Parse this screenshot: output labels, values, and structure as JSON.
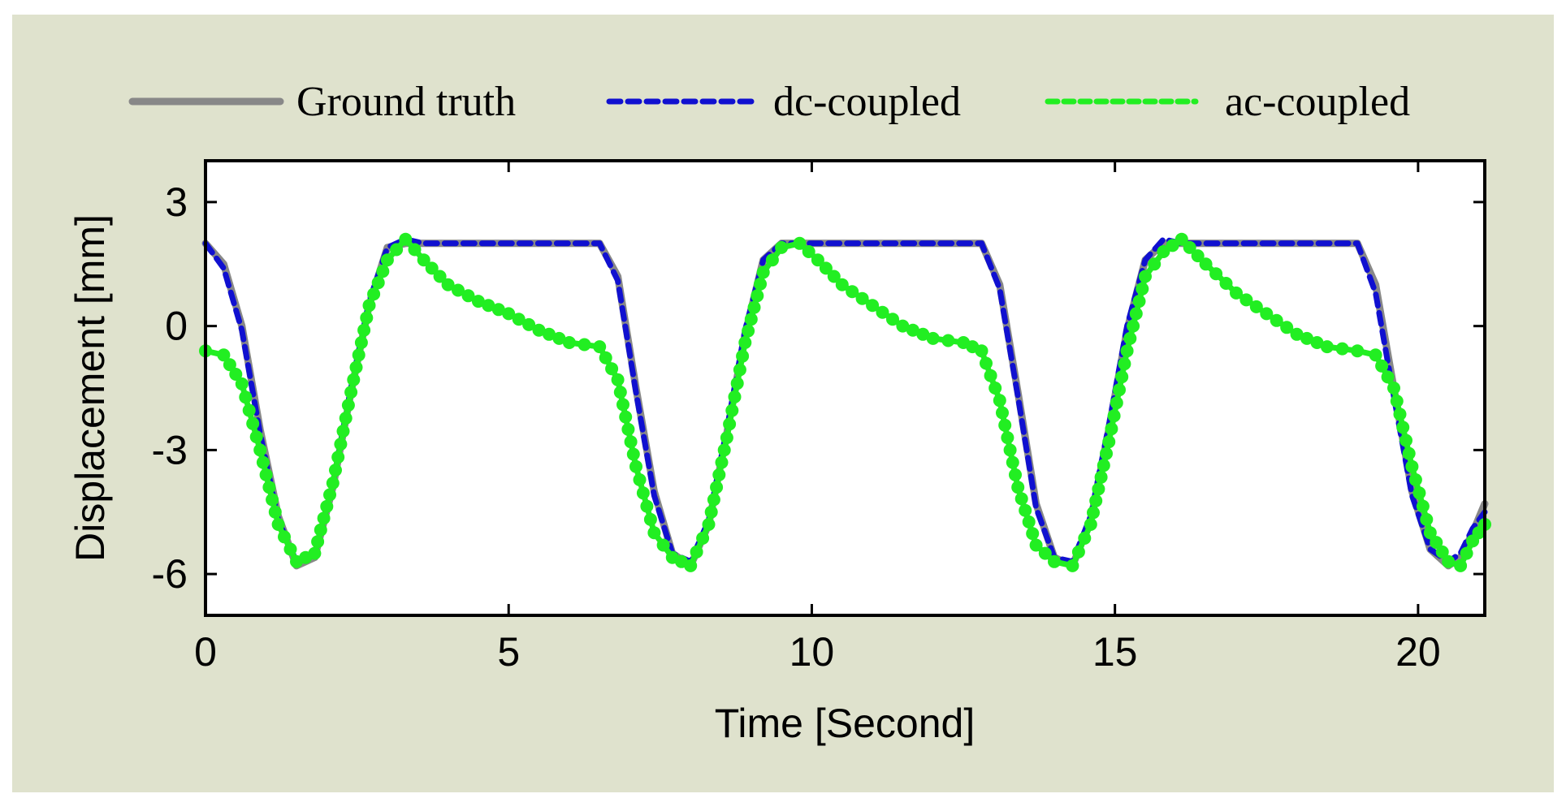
{
  "chart_data": {
    "type": "line",
    "title": "",
    "xlabel": "Time [Second]",
    "ylabel": "Displacement [mm]",
    "xlim": [
      0,
      21.1
    ],
    "ylim": [
      -7,
      4
    ],
    "xticks": [
      0,
      5,
      10,
      15,
      20
    ],
    "yticks": [
      3,
      0,
      -3,
      -6
    ],
    "grid": false,
    "legend_placement": "top, outside the axes",
    "background_color": "#dfe2cd",
    "plot_background_color": "#ffffff",
    "series": [
      {
        "name": "Ground truth",
        "color": "#888888",
        "style": "solid",
        "x": [
          0,
          0.3,
          0.6,
          0.9,
          1.2,
          1.5,
          1.8,
          2.1,
          2.4,
          2.7,
          3.0,
          3.3,
          3.6,
          4.0,
          5.0,
          6.0,
          6.5,
          6.8,
          7.1,
          7.4,
          7.7,
          8.0,
          8.3,
          8.6,
          8.9,
          9.2,
          9.5,
          9.8,
          10.1,
          11.0,
          12.0,
          12.8,
          13.1,
          13.4,
          13.7,
          14.0,
          14.3,
          14.6,
          14.9,
          15.2,
          15.5,
          15.8,
          16.1,
          16.5,
          17.5,
          18.5,
          19.0,
          19.3,
          19.6,
          19.9,
          20.2,
          20.5,
          20.7,
          20.9,
          21.1
        ],
        "values": [
          2.0,
          1.5,
          0.0,
          -2.5,
          -4.6,
          -5.8,
          -5.6,
          -3.9,
          -1.6,
          0.5,
          1.9,
          2.0,
          2.0,
          2.0,
          2.0,
          2.0,
          2.0,
          1.2,
          -1.5,
          -4.0,
          -5.5,
          -5.8,
          -4.8,
          -2.6,
          -0.2,
          1.6,
          2.0,
          2.0,
          2.0,
          2.0,
          2.0,
          2.0,
          1.0,
          -1.6,
          -4.3,
          -5.6,
          -5.8,
          -4.7,
          -2.5,
          -0.1,
          1.6,
          2.0,
          2.0,
          2.0,
          2.0,
          2.0,
          2.0,
          1.0,
          -1.5,
          -4.0,
          -5.4,
          -5.8,
          -5.6,
          -5.0,
          -4.3
        ]
      },
      {
        "name": "dc-coupled",
        "color": "#1010d0",
        "style": "dashed",
        "x": [
          0,
          0.3,
          0.6,
          0.9,
          1.2,
          1.5,
          1.8,
          2.1,
          2.4,
          2.7,
          3.0,
          3.3,
          3.6,
          4.0,
          5.0,
          6.0,
          6.5,
          6.8,
          7.1,
          7.4,
          7.7,
          8.0,
          8.3,
          8.6,
          8.9,
          9.2,
          9.5,
          9.8,
          10.1,
          11.0,
          12.0,
          12.8,
          13.1,
          13.4,
          13.7,
          14.0,
          14.3,
          14.6,
          14.9,
          15.2,
          15.5,
          15.8,
          16.1,
          16.5,
          17.5,
          18.5,
          19.0,
          19.3,
          19.6,
          19.9,
          20.2,
          20.5,
          20.7,
          20.9,
          21.1
        ],
        "values": [
          2.0,
          1.4,
          -0.1,
          -2.6,
          -4.7,
          -5.7,
          -5.5,
          -3.8,
          -1.5,
          0.6,
          1.9,
          2.1,
          2.0,
          2.0,
          2.0,
          2.0,
          2.0,
          1.1,
          -1.6,
          -4.1,
          -5.5,
          -5.7,
          -4.7,
          -2.5,
          -0.1,
          1.6,
          2.0,
          2.0,
          2.0,
          2.0,
          2.0,
          2.0,
          0.9,
          -1.7,
          -4.4,
          -5.6,
          -5.7,
          -4.6,
          -2.4,
          0.0,
          1.6,
          2.1,
          2.0,
          2.0,
          2.0,
          2.0,
          2.0,
          0.8,
          -1.7,
          -4.1,
          -5.4,
          -5.7,
          -5.5,
          -4.9,
          -4.5
        ]
      },
      {
        "name": "ac-coupled",
        "color": "#22ee22",
        "style": "dotted",
        "x": [
          0,
          0.3,
          0.6,
          0.9,
          1.2,
          1.5,
          1.8,
          2.1,
          2.4,
          2.7,
          3.0,
          3.3,
          3.6,
          4.0,
          4.5,
          5.0,
          5.5,
          6.0,
          6.5,
          6.8,
          7.1,
          7.4,
          7.7,
          8.0,
          8.3,
          8.6,
          8.9,
          9.2,
          9.5,
          9.8,
          10.1,
          10.5,
          11.0,
          11.5,
          12.0,
          12.5,
          12.8,
          13.1,
          13.4,
          13.7,
          14.0,
          14.3,
          14.6,
          14.9,
          15.2,
          15.5,
          15.8,
          16.1,
          16.5,
          17.0,
          17.5,
          18.0,
          18.5,
          19.0,
          19.3,
          19.6,
          19.9,
          20.2,
          20.5,
          20.7,
          20.9,
          21.1
        ],
        "values": [
          -0.6,
          -0.7,
          -1.4,
          -3.0,
          -4.8,
          -5.7,
          -5.5,
          -3.8,
          -1.6,
          0.5,
          1.6,
          2.1,
          1.6,
          1.0,
          0.6,
          0.3,
          -0.1,
          -0.4,
          -0.5,
          -1.3,
          -3.4,
          -5.0,
          -5.6,
          -5.8,
          -4.8,
          -2.7,
          -0.4,
          1.3,
          1.9,
          2.0,
          1.6,
          1.0,
          0.5,
          0.0,
          -0.3,
          -0.4,
          -0.6,
          -1.8,
          -3.9,
          -5.3,
          -5.7,
          -5.8,
          -4.8,
          -2.8,
          -0.6,
          1.2,
          1.8,
          2.1,
          1.5,
          0.8,
          0.3,
          -0.2,
          -0.5,
          -0.6,
          -0.7,
          -1.5,
          -3.4,
          -5.0,
          -5.7,
          -5.8,
          -5.2,
          -4.8
        ]
      }
    ]
  }
}
